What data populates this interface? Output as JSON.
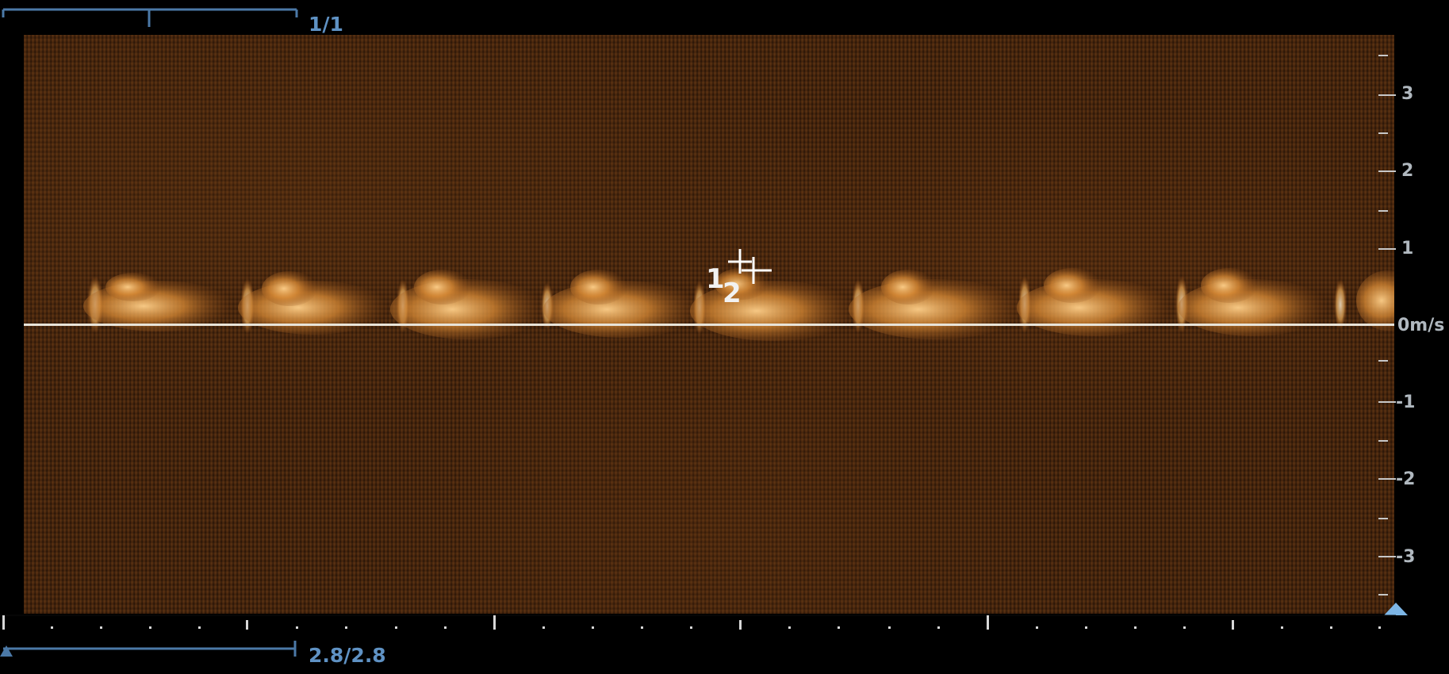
{
  "doppler": {
    "top_label": "1/1",
    "bottom_label": "2.8/2.8",
    "velocity_unit": "0m/s",
    "scale": {
      "positive": [
        "3",
        "2",
        "1"
      ],
      "negative": [
        "-1",
        "-2",
        "-3"
      ]
    },
    "cursor": {
      "label_1": "1",
      "label_2": "2"
    }
  }
}
